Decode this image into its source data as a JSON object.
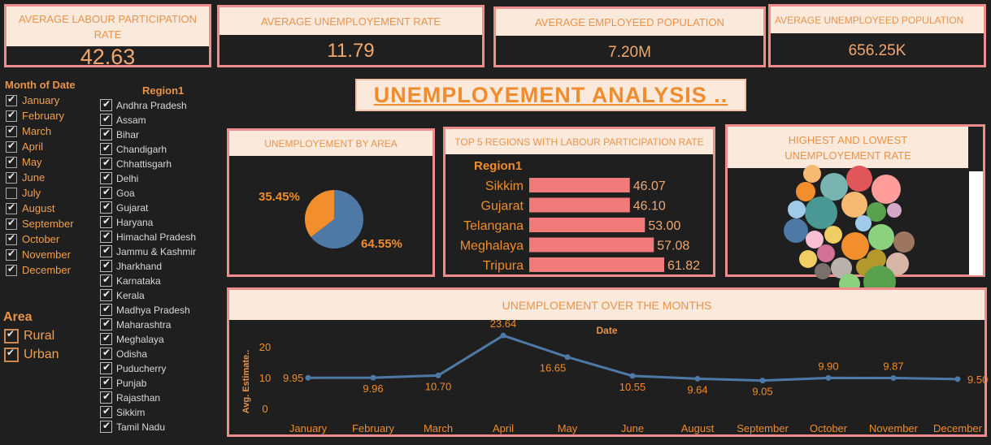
{
  "kpis": [
    {
      "label": "AVERAGE LABOUR PARTICIPATION RATE",
      "value": "42.63"
    },
    {
      "label": "AVERAGE UNEMPLOYEMENT RATE",
      "value": "11.79"
    },
    {
      "label": "AVERAGE EMPLOYEED POPULATION",
      "value": "7.20M"
    },
    {
      "label": "AVERAGE UNEMPLOYEED POPULATION",
      "value": "656.25K"
    }
  ],
  "dashboard_title": "UNEMPLOYEMENT ANALYSIS ..",
  "month_filter": {
    "title": "Month of Date",
    "items": [
      {
        "label": "January",
        "checked": true
      },
      {
        "label": "February",
        "checked": true
      },
      {
        "label": "March",
        "checked": true
      },
      {
        "label": "April",
        "checked": true
      },
      {
        "label": "May",
        "checked": true
      },
      {
        "label": "June",
        "checked": true
      },
      {
        "label": "July",
        "checked": false
      },
      {
        "label": "August",
        "checked": true
      },
      {
        "label": "September",
        "checked": true
      },
      {
        "label": "October",
        "checked": true
      },
      {
        "label": "November",
        "checked": true
      },
      {
        "label": "December",
        "checked": true
      }
    ]
  },
  "area_filter": {
    "title": "Area",
    "items": [
      {
        "label": "Rural",
        "checked": true
      },
      {
        "label": "Urban",
        "checked": true
      }
    ]
  },
  "region_filter": {
    "title": "Region1",
    "items": [
      "Andhra Pradesh",
      "Assam",
      "Bihar",
      "Chandigarh",
      "Chhattisgarh",
      "Delhi",
      "Goa",
      "Gujarat",
      "Haryana",
      "Himachal Pradesh",
      "Jammu & Kashmir",
      "Jharkhand",
      "Karnataka",
      "Kerala",
      "Madhya Pradesh",
      "Maharashtra",
      "Meghalaya",
      "Odisha",
      "Puducherry",
      "Punjab",
      "Rajasthan",
      "Sikkim",
      "Tamil Nadu"
    ]
  },
  "colors": {
    "accent": "#e8934a",
    "border": "#f08c8c",
    "header_bg": "#fbe9dc",
    "background": "#1f1f1f",
    "pie_rural": "#4e79a7",
    "pie_urban": "#f28e2b",
    "bar": "#f17a7a",
    "line": "#4e79a7"
  },
  "chart_data": [
    {
      "type": "pie",
      "title": "UNEMPLOYEMENT BY AREA",
      "slices": [
        {
          "label": "35.45%",
          "value": 35.45,
          "color": "#f28e2b"
        },
        {
          "label": "64.55%",
          "value": 64.55,
          "color": "#4e79a7"
        }
      ]
    },
    {
      "type": "bar",
      "orientation": "horizontal",
      "title": "TOP 5 REGIONS WITH LABOUR PARTICIPATION RATE",
      "category_header": "Region1",
      "categories": [
        "Sikkim",
        "Gujarat",
        "Telangana",
        "Meghalaya",
        "Tripura"
      ],
      "values": [
        46.07,
        46.1,
        53.0,
        57.08,
        61.82
      ],
      "value_labels": [
        "46.07",
        "46.10",
        "53.00",
        "57.08",
        "61.82"
      ],
      "xlim": [
        0,
        61.82
      ]
    },
    {
      "type": "scatter",
      "subtype": "packed-bubble",
      "title": "HIGHEST AND LOWEST UNEMPLOYEMENT RATE",
      "bubbles": [
        {
          "r": 11,
          "color": "#f5b971"
        },
        {
          "r": 17,
          "color": "#78b5b0"
        },
        {
          "r": 16,
          "color": "#e05759"
        },
        {
          "r": 18,
          "color": "#ff9d9a"
        },
        {
          "r": 12,
          "color": "#f28e2b"
        },
        {
          "r": 20,
          "color": "#499894"
        },
        {
          "r": 16,
          "color": "#f5b971"
        },
        {
          "r": 11,
          "color": "#a0cbe8"
        },
        {
          "r": 12,
          "color": "#59a14f"
        },
        {
          "r": 9,
          "color": "#d4a6c8"
        },
        {
          "r": 15,
          "color": "#4e79a7"
        },
        {
          "r": 11,
          "color": "#f1ce63"
        },
        {
          "r": 17,
          "color": "#f28e2b"
        },
        {
          "r": 16,
          "color": "#8cd17d"
        },
        {
          "r": 11,
          "color": "#fabfd2"
        },
        {
          "r": 10,
          "color": "#a0cbe8"
        },
        {
          "r": 13,
          "color": "#9d7660"
        },
        {
          "r": 11,
          "color": "#f1ce63"
        },
        {
          "r": 11,
          "color": "#d37295"
        },
        {
          "r": 13,
          "color": "#bab0ac"
        },
        {
          "r": 10,
          "color": "#79706e"
        },
        {
          "r": 12,
          "color": "#b6992d"
        },
        {
          "r": 14,
          "color": "#d7b5a6"
        },
        {
          "r": 11,
          "color": "#b6992d"
        },
        {
          "r": 13,
          "color": "#8cd17d"
        },
        {
          "r": 20,
          "color": "#59a14f"
        }
      ]
    },
    {
      "type": "line",
      "title": "UNEMPLOEMENT OVER THE MONTHS",
      "xlabel": "Date",
      "ylabel": "Avg. Estimate..",
      "categories": [
        "January",
        "February",
        "March",
        "April",
        "May",
        "June",
        "August",
        "September",
        "October",
        "November",
        "December"
      ],
      "series": [
        {
          "values": [
            9.95,
            9.96,
            10.7,
            23.64,
            16.65,
            10.55,
            9.64,
            9.05,
            9.9,
            9.87,
            9.5
          ]
        }
      ],
      "value_labels": [
        "9.95",
        "9.96",
        "10.70",
        "23.64",
        "16.65",
        "10.55",
        "9.64",
        "9.05",
        "9.90",
        "9.87",
        "9.50"
      ],
      "yticks": [
        "0",
        "10",
        "20"
      ],
      "ylim": [
        0,
        26
      ]
    }
  ]
}
